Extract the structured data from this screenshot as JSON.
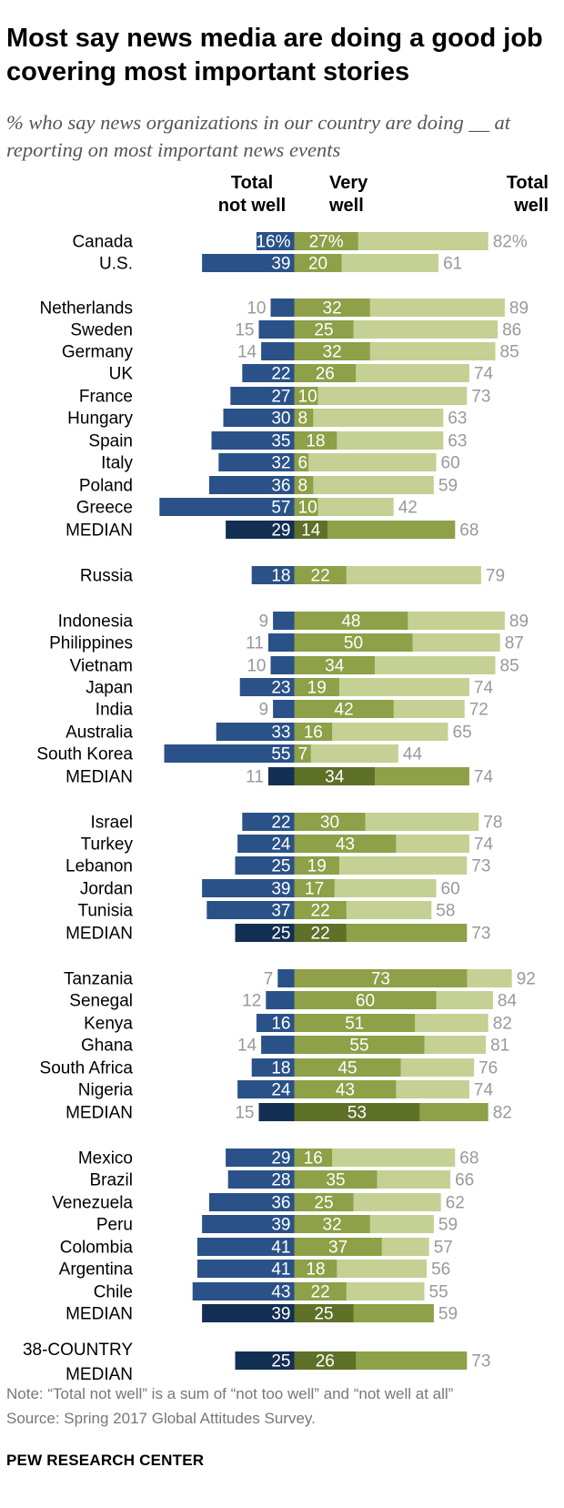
{
  "title": "Most say news media are doing a good job covering most important stories",
  "subtitle": "% who say news organizations in our country are doing __ at reporting on most important news events",
  "note": "Note: “Total not well” is a sum of “not too well” and “not well at all”",
  "source": "Source: Spring 2017 Global Attitudes Survey.",
  "org": "PEW RESEARCH CENTER",
  "colors": {
    "not_well": "#2a5288",
    "not_well_median": "#142f54",
    "very_well": "#8ea048",
    "very_well_median": "#5f7028",
    "total_well": "#c5d094",
    "total_well_median": "#8ea048",
    "label_light": "#999999",
    "label_dark": "#333333"
  },
  "chart_data": {
    "type": "bar",
    "orientation": "horizontal-diverging",
    "column_headers": {
      "not_well": "Total not well",
      "not_well_lines": [
        "Total",
        "not well"
      ],
      "very_well": "Very well",
      "very_well_lines": [
        "Very",
        "well"
      ],
      "total_well": "Total well",
      "total_well_lines": [
        "Total",
        "well"
      ]
    },
    "series": [
      {
        "name": "Total not well",
        "key": "not_well"
      },
      {
        "name": "Very well",
        "key": "very_well"
      },
      {
        "name": "Total well",
        "key": "total_well"
      }
    ],
    "rows": [
      {
        "country": "Canada",
        "not_well": 16,
        "very_well": 27,
        "total_well": 82,
        "percent_sign": true
      },
      {
        "country": "U.S.",
        "not_well": 39,
        "very_well": 20,
        "total_well": 61
      },
      {
        "country": "Netherlands",
        "not_well": 10,
        "very_well": 32,
        "total_well": 89
      },
      {
        "country": "Sweden",
        "not_well": 15,
        "very_well": 25,
        "total_well": 86
      },
      {
        "country": "Germany",
        "not_well": 14,
        "very_well": 32,
        "total_well": 85
      },
      {
        "country": "UK",
        "not_well": 22,
        "very_well": 26,
        "total_well": 74
      },
      {
        "country": "France",
        "not_well": 27,
        "very_well": 10,
        "total_well": 73
      },
      {
        "country": "Hungary",
        "not_well": 30,
        "very_well": 8,
        "total_well": 63
      },
      {
        "country": "Spain",
        "not_well": 35,
        "very_well": 18,
        "total_well": 63
      },
      {
        "country": "Italy",
        "not_well": 32,
        "very_well": 6,
        "total_well": 60
      },
      {
        "country": "Poland",
        "not_well": 36,
        "very_well": 8,
        "total_well": 59
      },
      {
        "country": "Greece",
        "not_well": 57,
        "very_well": 10,
        "total_well": 42
      },
      {
        "country": "MEDIAN",
        "not_well": 29,
        "very_well": 14,
        "total_well": 68,
        "median": true
      },
      {
        "country": "Russia",
        "not_well": 18,
        "very_well": 22,
        "total_well": 79
      },
      {
        "country": "Indonesia",
        "not_well": 9,
        "very_well": 48,
        "total_well": 89
      },
      {
        "country": "Philippines",
        "not_well": 11,
        "very_well": 50,
        "total_well": 87
      },
      {
        "country": "Vietnam",
        "not_well": 10,
        "very_well": 34,
        "total_well": 85
      },
      {
        "country": "Japan",
        "not_well": 23,
        "very_well": 19,
        "total_well": 74
      },
      {
        "country": "India",
        "not_well": 9,
        "very_well": 42,
        "total_well": 72
      },
      {
        "country": "Australia",
        "not_well": 33,
        "very_well": 16,
        "total_well": 65
      },
      {
        "country": "South Korea",
        "not_well": 55,
        "very_well": 7,
        "total_well": 44
      },
      {
        "country": "MEDIAN",
        "not_well": 11,
        "very_well": 34,
        "total_well": 74,
        "median": true
      },
      {
        "country": "Israel",
        "not_well": 22,
        "very_well": 30,
        "total_well": 78
      },
      {
        "country": "Turkey",
        "not_well": 24,
        "very_well": 43,
        "total_well": 74
      },
      {
        "country": "Lebanon",
        "not_well": 25,
        "very_well": 19,
        "total_well": 73
      },
      {
        "country": "Jordan",
        "not_well": 39,
        "very_well": 17,
        "total_well": 60
      },
      {
        "country": "Tunisia",
        "not_well": 37,
        "very_well": 22,
        "total_well": 58
      },
      {
        "country": "MEDIAN",
        "not_well": 25,
        "very_well": 22,
        "total_well": 73,
        "median": true
      },
      {
        "country": "Tanzania",
        "not_well": 7,
        "very_well": 73,
        "total_well": 92
      },
      {
        "country": "Senegal",
        "not_well": 12,
        "very_well": 60,
        "total_well": 84
      },
      {
        "country": "Kenya",
        "not_well": 16,
        "very_well": 51,
        "total_well": 82
      },
      {
        "country": "Ghana",
        "not_well": 14,
        "very_well": 55,
        "total_well": 81
      },
      {
        "country": "South Africa",
        "not_well": 18,
        "very_well": 45,
        "total_well": 76
      },
      {
        "country": "Nigeria",
        "not_well": 24,
        "very_well": 43,
        "total_well": 74
      },
      {
        "country": "MEDIAN",
        "not_well": 15,
        "very_well": 53,
        "total_well": 82,
        "median": true
      },
      {
        "country": "Mexico",
        "not_well": 29,
        "very_well": 16,
        "total_well": 68
      },
      {
        "country": "Brazil",
        "not_well": 28,
        "very_well": 35,
        "total_well": 66
      },
      {
        "country": "Venezuela",
        "not_well": 36,
        "very_well": 25,
        "total_well": 62
      },
      {
        "country": "Peru",
        "not_well": 39,
        "very_well": 32,
        "total_well": 59
      },
      {
        "country": "Colombia",
        "not_well": 41,
        "very_well": 37,
        "total_well": 57
      },
      {
        "country": "Argentina",
        "not_well": 41,
        "very_well": 18,
        "total_well": 56
      },
      {
        "country": "Chile",
        "not_well": 43,
        "very_well": 22,
        "total_well": 55
      },
      {
        "country": "MEDIAN",
        "not_well": 39,
        "very_well": 25,
        "total_well": 59,
        "median": true
      },
      {
        "country": "38-COUNTRY MEDIAN",
        "country_lines": [
          "38-COUNTRY",
          "MEDIAN"
        ],
        "not_well": 25,
        "very_well": 26,
        "total_well": 73,
        "median": true
      }
    ]
  }
}
